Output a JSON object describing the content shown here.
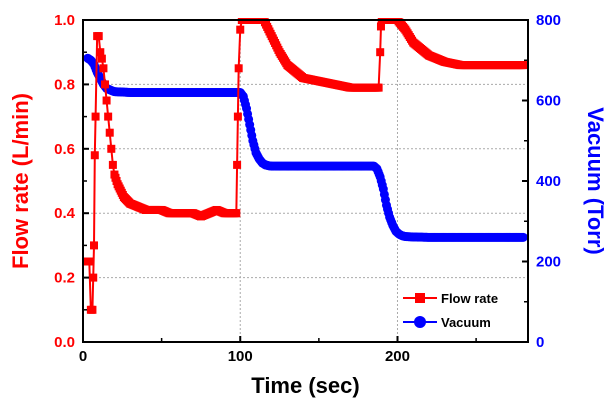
{
  "chart_data": {
    "type": "line",
    "xlabel": "Time (sec)",
    "ylabel_left": "Flow rate (L/min)",
    "ylabel_right": "Vacuum (Torr)",
    "xlim": [
      0,
      283
    ],
    "ylim_left": [
      0.0,
      1.0
    ],
    "ylim_right": [
      0,
      800
    ],
    "x_ticks": [
      "0",
      "100",
      "200"
    ],
    "y_left_ticks": [
      "0.0",
      "0.2",
      "0.4",
      "0.6",
      "0.8",
      "1.0"
    ],
    "y_right_ticks": [
      "0",
      "200",
      "400",
      "600",
      "800"
    ],
    "grid": true,
    "legend_placement": "bottom-right",
    "colors": {
      "flow": "#ff0000",
      "vacuum": "#0000ff",
      "grid": "#aaaaaa"
    },
    "series": [
      {
        "name": "Flow rate",
        "axis": "left",
        "marker": "square",
        "x": [
          3,
          4,
          5,
          6,
          6.5,
          7,
          7.5,
          8,
          9,
          10,
          11,
          12,
          13,
          14,
          15,
          16,
          17,
          18,
          19,
          20,
          22,
          24,
          26,
          28,
          30,
          35,
          40,
          45,
          50,
          55,
          60,
          65,
          70,
          75,
          80,
          85,
          90,
          95,
          97.5,
          98,
          98.5,
          99,
          100,
          101,
          102,
          103,
          104,
          106,
          108,
          110,
          115,
          120,
          125,
          130,
          135,
          140,
          150,
          160,
          170,
          180,
          185,
          188,
          189,
          189.5,
          190,
          191,
          192,
          195,
          200,
          205,
          210,
          220,
          230,
          240,
          250,
          260,
          270,
          280
        ],
        "values": [
          0.25,
          0.25,
          0.1,
          0.1,
          0.2,
          0.3,
          0.58,
          0.7,
          0.95,
          0.95,
          0.9,
          0.88,
          0.85,
          0.8,
          0.75,
          0.7,
          0.65,
          0.6,
          0.55,
          0.52,
          0.49,
          0.47,
          0.45,
          0.44,
          0.43,
          0.42,
          0.41,
          0.41,
          0.41,
          0.4,
          0.4,
          0.4,
          0.4,
          0.39,
          0.4,
          0.41,
          0.4,
          0.4,
          0.4,
          0.55,
          0.7,
          0.85,
          0.97,
          1.0,
          1.0,
          1.0,
          1.0,
          1.0,
          1.0,
          1.0,
          1.0,
          0.95,
          0.9,
          0.86,
          0.84,
          0.82,
          0.81,
          0.8,
          0.79,
          0.79,
          0.79,
          0.79,
          0.9,
          0.98,
          1.0,
          1.0,
          1.0,
          1.0,
          1.0,
          0.97,
          0.93,
          0.89,
          0.87,
          0.86,
          0.86,
          0.86,
          0.86,
          0.86
        ]
      },
      {
        "name": "Vacuum",
        "axis": "right",
        "marker": "circle",
        "x": [
          3,
          5,
          7,
          9,
          11,
          13,
          15,
          18,
          20,
          30,
          40,
          50,
          60,
          70,
          80,
          90,
          95,
          100,
          102,
          104,
          106,
          108,
          110,
          112,
          114,
          116,
          118,
          120,
          125,
          130,
          140,
          150,
          160,
          170,
          180,
          185,
          187,
          189,
          191,
          193,
          195,
          197,
          199,
          201,
          203,
          205,
          210,
          220,
          230,
          240,
          250,
          260,
          270,
          280
        ],
        "values": [
          705,
          700,
          690,
          670,
          655,
          640,
          630,
          625,
          622,
          620,
          620,
          620,
          620,
          620,
          620,
          620,
          620,
          620,
          610,
          580,
          540,
          500,
          470,
          455,
          445,
          440,
          438,
          437,
          437,
          437,
          437,
          437,
          437,
          437,
          437,
          437,
          430,
          410,
          380,
          340,
          310,
          290,
          275,
          268,
          264,
          262,
          261,
          260,
          260,
          260,
          260,
          260,
          260,
          260
        ]
      }
    ]
  }
}
